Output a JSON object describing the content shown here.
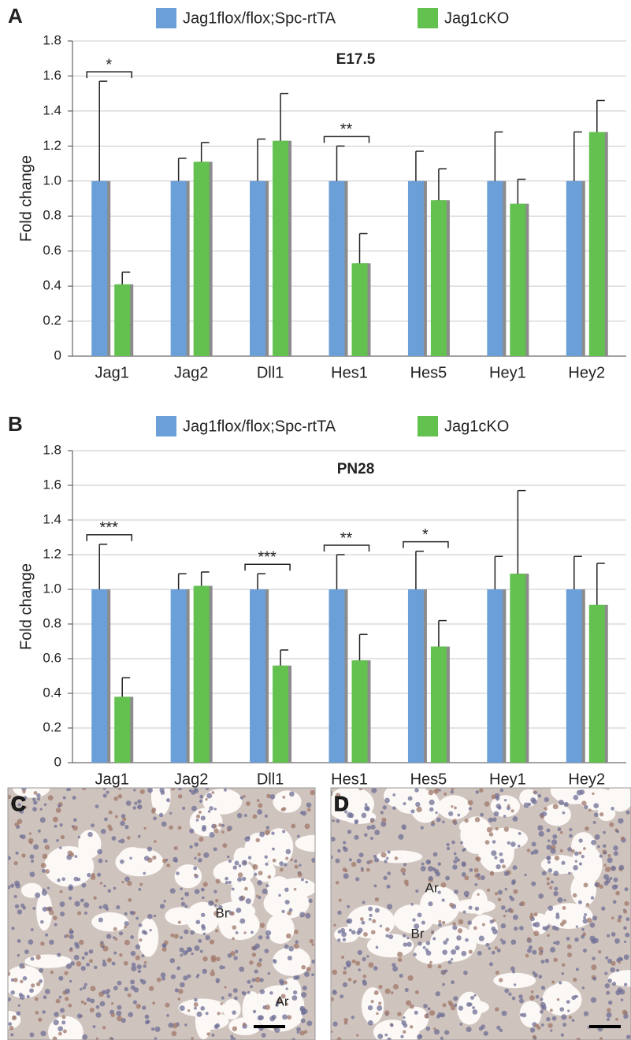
{
  "chart_data": [
    {
      "type": "bar",
      "panel": "A",
      "title": "E17.5",
      "y_label": "Fold change",
      "categories": [
        "Jag1",
        "Jag2",
        "Dll1",
        "Hes1",
        "Hes5",
        "Hey1",
        "Hey2"
      ],
      "series": [
        {
          "name": "Jag1flox/flox;Spc-rtTA",
          "color": "#6a9fd8",
          "values": [
            1,
            1,
            1,
            1,
            1,
            1,
            1
          ],
          "errors": [
            0.57,
            0.13,
            0.24,
            0.2,
            0.17,
            0.28,
            0.28
          ]
        },
        {
          "name": "Jag1cKO",
          "color": "#63c14f",
          "values": [
            0.41,
            1.11,
            1.23,
            0.53,
            0.89,
            0.87,
            1.28
          ],
          "errors": [
            0.07,
            0.11,
            0.27,
            0.17,
            0.18,
            0.14,
            0.18
          ]
        }
      ],
      "annotations": [
        {
          "text": "*",
          "category": "Jag1"
        },
        {
          "text": "**",
          "category": "Hes1"
        }
      ],
      "ylim": [
        0,
        1.8
      ],
      "yticks": [
        0,
        0.2,
        0.4,
        0.6,
        0.8,
        {
          "value": 1,
          "label": "1.0"
        },
        1.2,
        1.4,
        1.6,
        1.8
      ],
      "grid": true
    },
    {
      "type": "bar",
      "panel": "B",
      "title": "PN28",
      "y_label": "Fold change",
      "categories": [
        "Jag1",
        "Jag2",
        "Dll1",
        "Hes1",
        "Hes5",
        "Hey1",
        "Hey2"
      ],
      "series": [
        {
          "name": "Jag1flox/flox;Spc-rtTA",
          "color": "#6a9fd8",
          "values": [
            1,
            1,
            1,
            1,
            1,
            1,
            1
          ],
          "errors": [
            0.26,
            0.09,
            0.09,
            0.2,
            0.22,
            0.19,
            0.19
          ]
        },
        {
          "name": "Jag1cKO",
          "color": "#63c14f",
          "values": [
            0.38,
            1.02,
            0.56,
            0.59,
            0.67,
            1.09,
            0.91
          ],
          "errors": [
            0.11,
            0.08,
            0.09,
            0.15,
            0.15,
            0.48,
            0.24
          ]
        }
      ],
      "annotations": [
        {
          "text": "***",
          "category": "Jag1"
        },
        {
          "text": "***",
          "category": "Dll1"
        },
        {
          "text": "**",
          "category": "Hes1"
        },
        {
          "text": "*",
          "category": "Hes5"
        }
      ],
      "ylim": [
        0,
        1.8
      ],
      "yticks": [
        0,
        0.2,
        0.4,
        0.6,
        0.8,
        {
          "value": 1,
          "label": "1.0"
        },
        1.2,
        1.4,
        1.6,
        1.8
      ],
      "grid": true
    }
  ],
  "images": [
    {
      "panel": "C",
      "labels": [
        "Br",
        "Ar"
      ]
    },
    {
      "panel": "D",
      "labels": [
        "Ar",
        "Br"
      ]
    }
  ]
}
